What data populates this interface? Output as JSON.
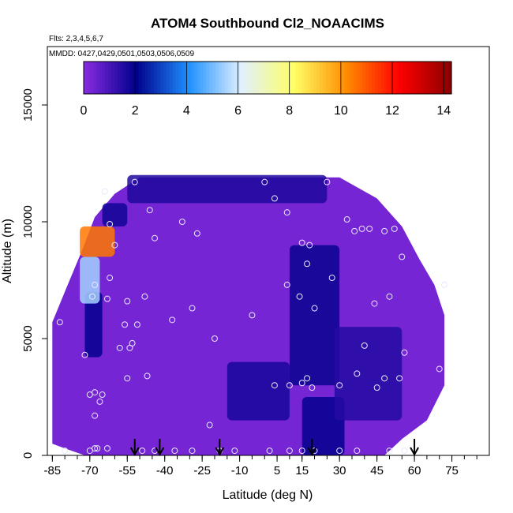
{
  "chart_data": {
    "type": "heatmap",
    "title": "ATOM4 Southbound Cl2_NOAACIMS",
    "subtitle_flights": "Flts: 2,3,4,5,6,7",
    "subtitle_dates": "MMDD: 0427,0429,0501,0503,0506,0509",
    "xlabel": "Latitude (deg N)",
    "ylabel": "Altitude (m)",
    "xlim": [
      -87,
      90
    ],
    "ylim": [
      0,
      17500
    ],
    "x_ticks": [
      "-85",
      "-70",
      "-55",
      "-40",
      "-25",
      "-10",
      "5",
      "15",
      "30",
      "45",
      "60",
      "75"
    ],
    "y_ticks": [
      "0",
      "5000",
      "10000",
      "15000"
    ],
    "colorbar": {
      "range": [
        0,
        14.3
      ],
      "ticks": [
        "0",
        "2",
        "4",
        "6",
        "8",
        "10",
        "12",
        "14"
      ],
      "colors": [
        "#8a2be2",
        "#00008b",
        "#1e90ff",
        "#e0f0ff",
        "#ffff66",
        "#ff8c00",
        "#ff0000",
        "#8b0000"
      ]
    },
    "field_regions": [
      {
        "lat_range": [
          -85,
          72
        ],
        "alt_range": [
          0,
          12000
        ],
        "value": 0.3,
        "desc": "background"
      },
      {
        "lat_range": [
          -55,
          25
        ],
        "alt_range": [
          10800,
          12000
        ],
        "value": 1.6
      },
      {
        "lat_range": [
          -72,
          -65
        ],
        "alt_range": [
          4200,
          7000
        ],
        "value": 2.0
      },
      {
        "lat_range": [
          -74,
          -66
        ],
        "alt_range": [
          6500,
          8500
        ],
        "value": 5.5
      },
      {
        "lat_range": [
          -74,
          -60
        ],
        "alt_range": [
          8500,
          9800
        ],
        "value": 10.5
      },
      {
        "lat_range": [
          -65,
          -55
        ],
        "alt_range": [
          9800,
          10800
        ],
        "value": 1.8
      },
      {
        "lat_range": [
          -15,
          10
        ],
        "alt_range": [
          1500,
          4000
        ],
        "value": 1.7
      },
      {
        "lat_range": [
          10,
          30
        ],
        "alt_range": [
          3000,
          9000
        ],
        "value": 1.9
      },
      {
        "lat_range": [
          15,
          32
        ],
        "alt_range": [
          0,
          2500
        ],
        "value": 2.0
      },
      {
        "lat_range": [
          28,
          55
        ],
        "alt_range": [
          1500,
          5500
        ],
        "value": 1.5
      }
    ],
    "sample_points": [
      [
        -52,
        11700
      ],
      [
        -64,
        11300
      ],
      [
        -46,
        10500
      ],
      [
        -33,
        10000
      ],
      [
        -27,
        9500
      ],
      [
        -44,
        9300
      ],
      [
        -62,
        9900
      ],
      [
        -60,
        9000
      ],
      [
        -62,
        7600
      ],
      [
        -68,
        7300
      ],
      [
        -69,
        6800
      ],
      [
        -63,
        6700
      ],
      [
        -55,
        6600
      ],
      [
        -48,
        6800
      ],
      [
        -29,
        6300
      ],
      [
        -37,
        5800
      ],
      [
        -56,
        5600
      ],
      [
        -51,
        5600
      ],
      [
        -53,
        4800
      ],
      [
        -58,
        4600
      ],
      [
        -54,
        4600
      ],
      [
        -72,
        4300
      ],
      [
        -82,
        5700
      ],
      [
        -20,
        5000
      ],
      [
        -5,
        6000
      ],
      [
        0,
        11700
      ],
      [
        4,
        11000
      ],
      [
        9,
        10400
      ],
      [
        15,
        9100
      ],
      [
        18,
        9000
      ],
      [
        17,
        8200
      ],
      [
        25,
        11700
      ],
      [
        27,
        7600
      ],
      [
        33,
        10100
      ],
      [
        36,
        9600
      ],
      [
        39,
        9700
      ],
      [
        42,
        9700
      ],
      [
        48,
        9600
      ],
      [
        52,
        9700
      ],
      [
        55,
        8500
      ],
      [
        50,
        6800
      ],
      [
        44,
        6500
      ],
      [
        20,
        6300
      ],
      [
        14,
        6800
      ],
      [
        9,
        7300
      ],
      [
        40,
        4700
      ],
      [
        56,
        4400
      ],
      [
        70,
        3700
      ],
      [
        72,
        7300
      ],
      [
        -55,
        3300
      ],
      [
        -47,
        3400
      ],
      [
        4,
        3000
      ],
      [
        10,
        3000
      ],
      [
        15,
        3100
      ],
      [
        17,
        3300
      ],
      [
        19,
        2900
      ],
      [
        30,
        3000
      ],
      [
        37,
        3500
      ],
      [
        45,
        2900
      ],
      [
        48,
        3300
      ],
      [
        54,
        3300
      ],
      [
        -70,
        2600
      ],
      [
        -68,
        2700
      ],
      [
        -65,
        2600
      ],
      [
        -66,
        2300
      ],
      [
        -68,
        1700
      ],
      [
        -22,
        1300
      ],
      [
        -80,
        200
      ],
      [
        -70,
        200
      ],
      [
        -68,
        300
      ],
      [
        -67,
        300
      ],
      [
        -63,
        300
      ],
      [
        -49,
        200
      ],
      [
        -44,
        200
      ],
      [
        -36,
        200
      ],
      [
        -29,
        200
      ],
      [
        -18,
        200
      ],
      [
        -12,
        200
      ],
      [
        2,
        200
      ],
      [
        10,
        200
      ],
      [
        15,
        200
      ],
      [
        20,
        200
      ],
      [
        30,
        200
      ],
      [
        37,
        200
      ],
      [
        50,
        200
      ],
      [
        56,
        200
      ]
    ],
    "arrows_lat": [
      -52,
      -42,
      -18,
      19,
      60
    ]
  }
}
